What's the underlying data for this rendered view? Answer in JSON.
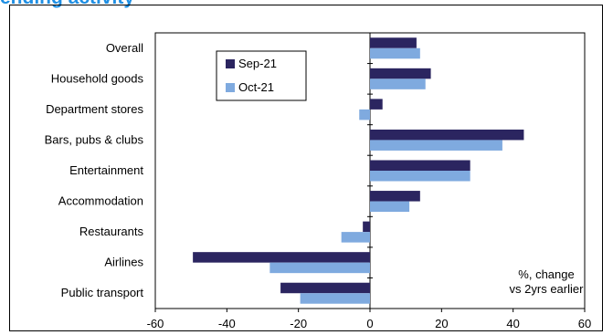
{
  "header": {
    "title": "ending activity"
  },
  "chart_data": {
    "type": "bar",
    "orientation": "horizontal",
    "categories": [
      "Overall",
      "Household goods",
      "Department stores",
      "Bars, pubs & clubs",
      "Entertainment",
      "Accommodation",
      "Restaurants",
      "Airlines",
      "Public transport"
    ],
    "series": [
      {
        "name": "Sep-21",
        "color": "#2b2560",
        "values": [
          13,
          17,
          3.5,
          43,
          28,
          14,
          -2,
          -49.5,
          -25
        ]
      },
      {
        "name": "Oct-21",
        "color": "#7faadf",
        "values": [
          14,
          15.5,
          -3,
          37,
          28,
          11,
          -8,
          -28,
          -19.5
        ]
      }
    ],
    "xlim": [
      -60,
      60
    ],
    "xticks": [
      "-60",
      "-40",
      "-20",
      "0",
      "20",
      "40",
      "60"
    ],
    "note": [
      "%, change",
      "vs 2yrs earlier"
    ],
    "legend_position": "top-left inside plot"
  }
}
